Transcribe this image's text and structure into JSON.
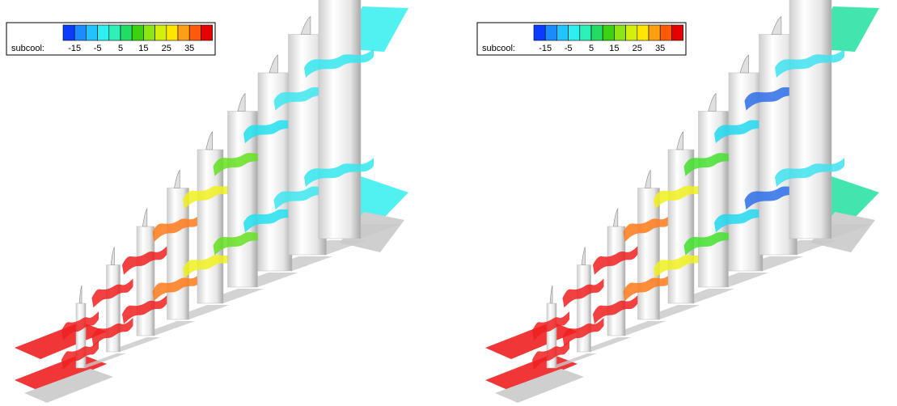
{
  "panels": [
    {
      "legend": {
        "label": "subcool:",
        "ticks": [
          "-15",
          "-5",
          "5",
          "15",
          "25",
          "35"
        ]
      }
    },
    {
      "legend": {
        "label": "subcool:",
        "ticks": [
          "-15",
          "-5",
          "5",
          "15",
          "25",
          "35"
        ]
      }
    }
  ]
}
